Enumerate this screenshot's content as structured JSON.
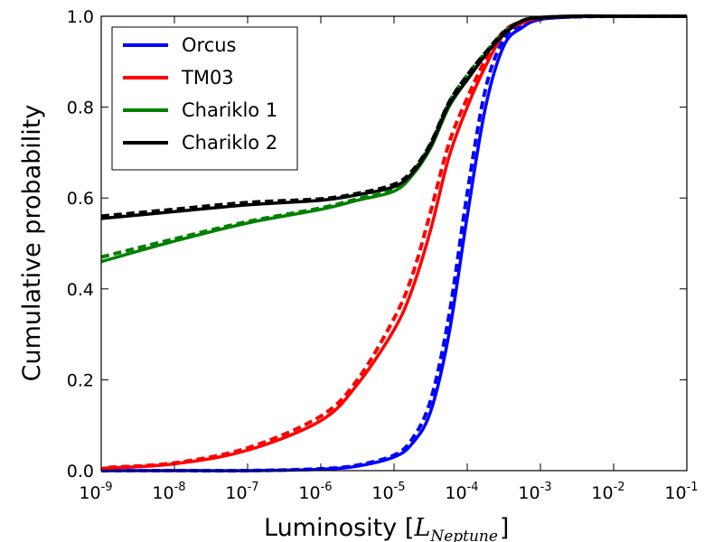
{
  "chart_data": {
    "type": "line",
    "xscale": "log",
    "xlim_log10": [
      -9,
      -1
    ],
    "ylim": [
      0.0,
      1.0
    ],
    "xlabel": "Luminosity [",
    "xlabel_math_main": "L",
    "xlabel_math_sub": "Neptune",
    "xlabel_close": "]",
    "ylabel": "Cumulative probability",
    "x_tick_base": "10",
    "x_tick_exponents": [
      "-9",
      "-8",
      "-7",
      "-6",
      "-5",
      "-4",
      "-3",
      "-2",
      "-1"
    ],
    "y_ticks": [
      "0.0",
      "0.2",
      "0.4",
      "0.6",
      "0.8",
      "1.0"
    ],
    "legend_position": "top-left",
    "x_log10": [
      -9,
      -8,
      -7,
      -6,
      -5.5,
      -5,
      -4.75,
      -4.5,
      -4.25,
      -4,
      -3.75,
      -3.5,
      -3.25,
      -3,
      -2.5,
      -2,
      -1
    ],
    "series": [
      {
        "name": "Orcus",
        "color": "#0000ff",
        "solid": [
          0.0,
          0.0,
          0.0,
          0.003,
          0.01,
          0.03,
          0.06,
          0.13,
          0.3,
          0.56,
          0.8,
          0.935,
          0.975,
          0.993,
          0.999,
          1.0,
          1.0
        ],
        "dashed": [
          0.0,
          0.0,
          0.0,
          0.004,
          0.012,
          0.034,
          0.07,
          0.155,
          0.34,
          0.61,
          0.84,
          0.95,
          0.982,
          0.995,
          0.999,
          1.0,
          1.0
        ]
      },
      {
        "name": "TM03",
        "color": "#ff0000",
        "solid": [
          0.005,
          0.015,
          0.045,
          0.11,
          0.19,
          0.31,
          0.4,
          0.53,
          0.69,
          0.8,
          0.89,
          0.96,
          0.985,
          0.996,
          1.0,
          1.0,
          1.0
        ],
        "dashed": [
          0.007,
          0.017,
          0.05,
          0.12,
          0.2,
          0.335,
          0.43,
          0.57,
          0.72,
          0.82,
          0.905,
          0.967,
          0.988,
          0.997,
          1.0,
          1.0,
          1.0
        ],
        "dashed_first_x_log10": -8.9
      },
      {
        "name": "Chariklo 1",
        "color": "#008000",
        "solid": [
          0.46,
          0.505,
          0.545,
          0.575,
          0.595,
          0.615,
          0.65,
          0.71,
          0.8,
          0.86,
          0.915,
          0.96,
          0.99,
          0.997,
          1.0,
          1.0,
          1.0
        ],
        "dashed": [
          0.47,
          0.51,
          0.548,
          0.578,
          0.598,
          0.618,
          0.655,
          0.72,
          0.81,
          0.87,
          0.92,
          0.965,
          0.99,
          0.997,
          1.0,
          1.0,
          1.0
        ]
      },
      {
        "name": "Chariklo 2",
        "color": "#000000",
        "solid": [
          0.555,
          0.57,
          0.585,
          0.595,
          0.607,
          0.625,
          0.655,
          0.715,
          0.805,
          0.86,
          0.915,
          0.96,
          0.99,
          0.997,
          1.0,
          1.0,
          1.0
        ],
        "dashed": [
          0.56,
          0.575,
          0.59,
          0.598,
          0.61,
          0.63,
          0.66,
          0.72,
          0.81,
          0.87,
          0.92,
          0.965,
          0.99,
          0.997,
          1.0,
          1.0,
          1.0
        ]
      }
    ]
  }
}
